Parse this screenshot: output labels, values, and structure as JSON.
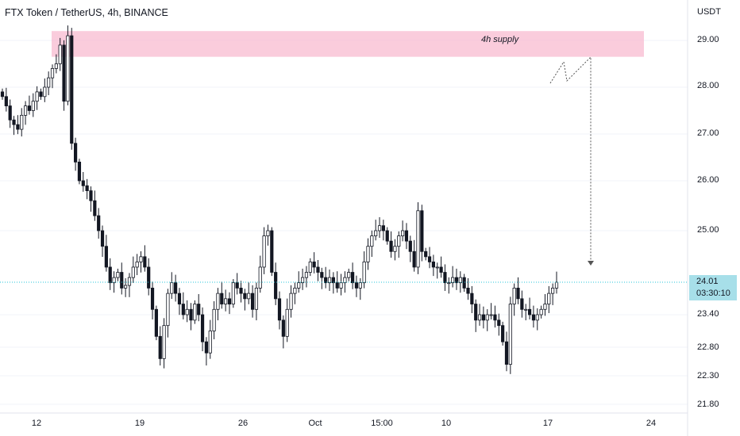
{
  "header": {
    "title": "FTX Token / TetherUS, 4h, BINANCE"
  },
  "axis": {
    "currency": "USDT"
  },
  "current_price": {
    "price": "24.01",
    "countdown": "03:30:10"
  },
  "annotations": {
    "supply_zone_label": "4h supply"
  },
  "colors": {
    "candle": "#131722",
    "supply_zone": "#f8bbd0",
    "price_line": "#26c6da",
    "price_label_bg": "#a7dfe9",
    "projection": "#555555"
  },
  "chart_data": {
    "type": "candlestick",
    "title": "FTX Token / TetherUS, 4h, BINANCE",
    "ylabel": "USDT",
    "y_ticks": [
      "29.00",
      "28.00",
      "27.00",
      "26.00",
      "25.00",
      "24.01",
      "23.40",
      "22.80",
      "22.30",
      "21.80"
    ],
    "x_ticks": [
      "12",
      "19",
      "26",
      "Oct",
      "15:00",
      "10",
      "17",
      "24"
    ],
    "last_price": 24.01,
    "supply_zone": {
      "label": "4h supply",
      "low": 28.65,
      "high": 29.2
    },
    "projection_path": [
      28.0,
      28.6,
      28.05,
      28.7,
      24.3
    ],
    "series": [
      {
        "values": [
          27.8,
          27.6,
          27.3,
          27.2,
          27.1,
          27.4,
          27.6,
          27.5,
          27.7,
          27.9,
          27.8,
          28.0,
          28.2,
          28.4,
          28.5,
          28.9,
          27.7,
          29.1,
          26.8,
          26.4,
          26.0,
          25.9,
          25.8,
          25.6,
          25.3,
          25.0,
          24.7,
          24.3,
          24.0,
          24.1,
          24.2,
          23.9,
          23.95,
          24.1,
          24.3,
          24.4,
          24.5,
          24.3,
          23.9,
          23.5,
          23.0,
          22.6,
          23.2,
          23.8,
          24.0,
          23.8,
          23.6,
          23.4,
          23.5,
          23.3,
          23.6,
          23.4,
          22.9,
          22.7,
          23.1,
          23.5,
          23.8,
          23.6,
          23.7,
          23.6,
          24.0,
          23.9,
          23.8,
          23.7,
          23.8,
          23.5,
          23.9,
          24.3,
          24.9,
          25.0,
          24.2,
          23.7,
          23.3,
          23.0,
          23.5,
          23.8,
          23.9,
          24.0,
          24.1,
          24.2,
          24.4,
          24.3,
          24.2,
          24.1,
          24.0,
          24.1,
          24.0,
          23.9,
          24.0,
          24.1,
          24.2,
          24.0,
          23.9,
          24.0,
          24.4,
          24.7,
          24.9,
          25.0,
          25.1,
          25.0,
          24.8,
          24.6,
          24.7,
          24.9,
          25.0,
          24.8,
          24.6,
          24.3,
          25.4,
          24.6,
          24.5,
          24.4,
          24.3,
          24.3,
          24.2,
          24.0,
          24.0,
          24.1,
          24.0,
          24.1,
          23.9,
          23.8,
          23.6,
          23.3,
          23.4,
          23.3,
          23.4,
          23.4,
          23.3,
          23.2,
          22.9,
          22.5,
          23.6,
          23.9,
          23.7,
          23.5,
          23.5,
          23.4,
          23.3,
          23.4,
          23.5,
          23.6,
          23.8,
          23.9,
          24.01
        ]
      }
    ]
  }
}
